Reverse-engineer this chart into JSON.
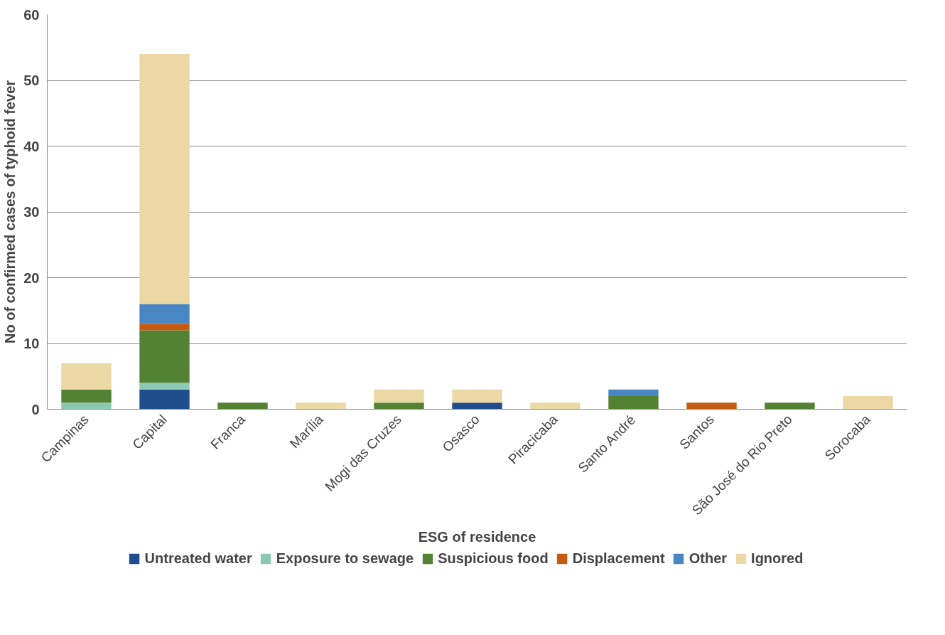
{
  "chart_data": {
    "type": "bar",
    "stacked": true,
    "xlabel": "ESG of residence",
    "ylabel": "No of confirmed cases of typhoid fever",
    "categories": [
      "Campinas",
      "Capital",
      "Franca",
      "Marília",
      "Mogi das Cruzes",
      "Osasco",
      "Piracicaba",
      "Santo André",
      "Santos",
      "São José do Rio Preto",
      "Sorocaba"
    ],
    "series": [
      {
        "name": "Untreated water",
        "color": "#1f4e8c",
        "values": [
          0,
          3,
          0,
          0,
          0,
          1,
          0,
          0,
          0,
          0,
          0
        ]
      },
      {
        "name": "Exposure to sewage",
        "color": "#8dc8b5",
        "values": [
          1,
          1,
          0,
          0,
          0,
          0,
          0,
          0,
          0,
          0,
          0
        ]
      },
      {
        "name": "Suspicious food",
        "color": "#548235",
        "values": [
          2,
          8,
          1,
          0,
          1,
          0,
          0,
          2,
          0,
          1,
          0
        ]
      },
      {
        "name": "Displacement",
        "color": "#c55a11",
        "values": [
          0,
          1,
          0,
          0,
          0,
          0,
          0,
          0,
          1,
          0,
          0
        ]
      },
      {
        "name": "Other",
        "color": "#4a86c1",
        "values": [
          0,
          3,
          0,
          0,
          0,
          0,
          0,
          1,
          0,
          0,
          0
        ]
      },
      {
        "name": "Ignored",
        "color": "#ebd8a5",
        "values": [
          4,
          38,
          0,
          1,
          2,
          2,
          1,
          0,
          0,
          0,
          2
        ]
      }
    ],
    "ylim": [
      0,
      60
    ],
    "yticks": [
      0,
      10,
      20,
      30,
      40,
      50,
      60
    ],
    "grid": "y",
    "legend": "bottom"
  }
}
